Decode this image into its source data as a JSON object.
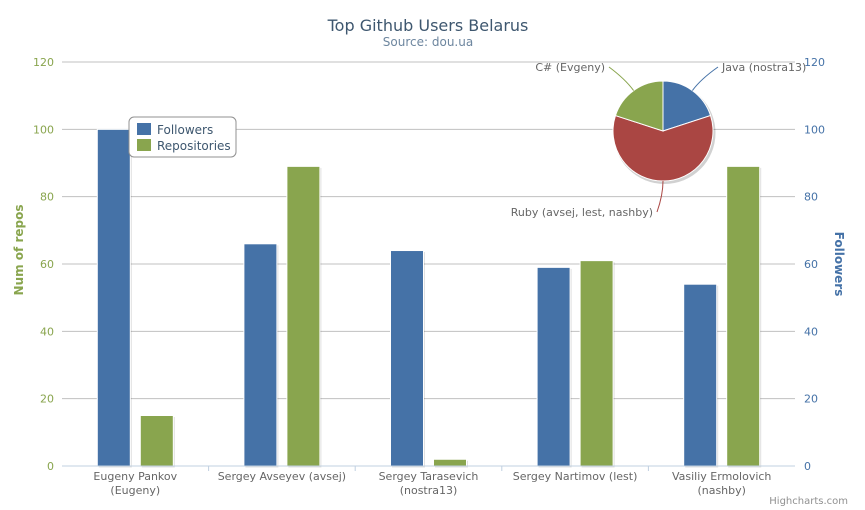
{
  "chart_data": [
    {
      "type": "bar",
      "title": "Top Github Users Belarus",
      "subtitle": "Source: dou.ua",
      "categories": [
        [
          "Eugeny Pankov",
          "(Eugeny)"
        ],
        [
          "Sergey Avseyev (avsej)"
        ],
        [
          "Sergey Tarasevich",
          "(nostra13)"
        ],
        [
          "Sergey Nartimov (lest)"
        ],
        [
          "Vasiliy Ermolovich",
          "(nashby)"
        ]
      ],
      "series": [
        {
          "name": "Followers",
          "axis": "right",
          "color": "#4572A7",
          "values": [
            100,
            66,
            64,
            59,
            54
          ]
        },
        {
          "name": "Repositories",
          "axis": "left",
          "color": "#89A54E",
          "values": [
            15,
            89,
            2,
            61,
            89
          ]
        }
      ],
      "ylabel": "Num of repos",
      "y2label": "Followers",
      "ylim": [
        0,
        120
      ],
      "y2lim": [
        0,
        120
      ],
      "yticks": [
        "0",
        "20",
        "40",
        "60",
        "80",
        "100",
        "120"
      ],
      "grid": true,
      "legend": "top-left"
    },
    {
      "type": "pie",
      "slices": [
        {
          "label": "Java (nostra13)",
          "value": 2,
          "color": "#4572A7"
        },
        {
          "label": "Ruby (avsej, lest, nashby)",
          "value": 6,
          "color": "#AA4643"
        },
        {
          "label": "C# (Evgeny)",
          "value": 2,
          "color": "#89A54E"
        }
      ]
    }
  ],
  "credits": "Highcharts.com"
}
